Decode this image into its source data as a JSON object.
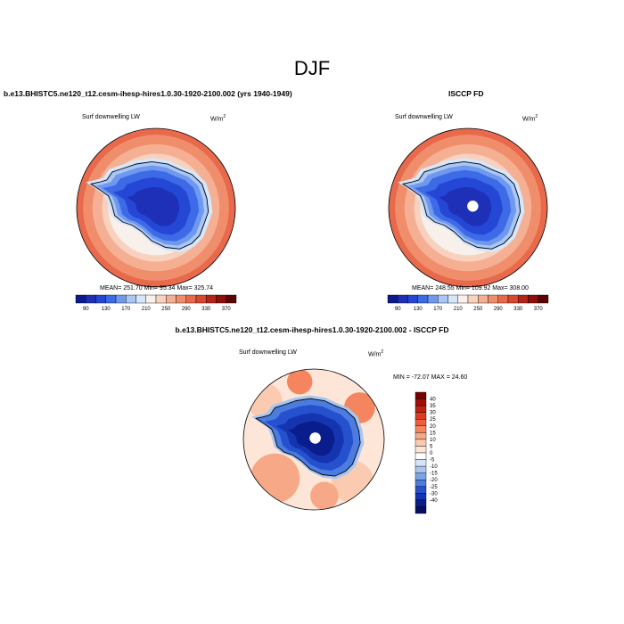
{
  "main_title": "DJF",
  "panels": [
    {
      "case_title": "b.e13.BHISTC5.ne120_t12.cesm-ihesp-hires1.0.30-1920-2100.002 (yrs 1940-1949)",
      "variable": "Surf downwelling LW",
      "units_base": "W/m",
      "units_exp": "2",
      "stats": "MEAN= 251.70  Min=  95.34  Max= 325.74"
    },
    {
      "case_title": "ISCCP FD",
      "variable": "Surf downwelling LW",
      "units_base": "W/m",
      "units_exp": "2",
      "stats": "MEAN= 248.55  Min= 109.92  Max= 308.00"
    },
    {
      "case_title": "b.e13.BHISTC5.ne120_t12.cesm-ihesp-hires1.0.30-1920-2100.002 - ISCCP FD",
      "variable": "Surf downwelling LW",
      "units_base": "W/m",
      "units_exp": "2",
      "stats": "MIN = -72.07 MAX =  24.60"
    }
  ],
  "colorbar_abs": {
    "labels": [
      "90",
      "130",
      "170",
      "210",
      "250",
      "290",
      "330",
      "370"
    ],
    "colors": [
      "#0b1a8c",
      "#1e2fb8",
      "#2547d6",
      "#3d6ae6",
      "#6f98ef",
      "#a8c6f6",
      "#d6e6fb",
      "#f8f0ea",
      "#f8d2bf",
      "#f5af92",
      "#f08e6c",
      "#e8694b",
      "#d9472e",
      "#b82317",
      "#8c0f0a",
      "#5a0503"
    ]
  },
  "colorbar_diff": {
    "labels": [
      "40",
      "35",
      "30",
      "25",
      "20",
      "15",
      "10",
      "5",
      "0",
      "-5",
      "-10",
      "-15",
      "-20",
      "-25",
      "-30",
      "-40"
    ],
    "colors": [
      "#7a0000",
      "#a00e08",
      "#c22212",
      "#dc3b22",
      "#ec5f3e",
      "#f4855f",
      "#f7a987",
      "#fbcbb1",
      "#fde6d8",
      "#ffffff",
      "#d7e5f8",
      "#a9c6f0",
      "#7aa3e8",
      "#4c7ce0",
      "#2551cf",
      "#1535b0",
      "#0a1d8c",
      "#050f66"
    ]
  },
  "chart_data": [
    {
      "type": "heatmap",
      "title": "b.e13.BHISTC5.ne120_t12.cesm-ihesp-hires1.0.30-1920-2100.002 (yrs 1940-1949)",
      "variable": "Surf downwelling LW",
      "units": "W/m2",
      "projection": "south polar stereographic",
      "mean": 251.7,
      "min": 95.34,
      "max": 325.74,
      "colorbar_levels": [
        90,
        130,
        170,
        210,
        250,
        290,
        330,
        370
      ]
    },
    {
      "type": "heatmap",
      "title": "ISCCP FD",
      "variable": "Surf downwelling LW",
      "units": "W/m2",
      "projection": "south polar stereographic",
      "mean": 248.55,
      "min": 109.92,
      "max": 308.0,
      "colorbar_levels": [
        90,
        130,
        170,
        210,
        250,
        290,
        330,
        370
      ]
    },
    {
      "type": "heatmap",
      "title": "b.e13.BHISTC5.ne120_t12.cesm-ihesp-hires1.0.30-1920-2100.002 - ISCCP FD",
      "variable": "Surf downwelling LW",
      "units": "W/m2",
      "projection": "south polar stereographic",
      "min": -72.07,
      "max": 24.6,
      "colorbar_levels": [
        40,
        35,
        30,
        25,
        20,
        15,
        10,
        5,
        0,
        -5,
        -10,
        -15,
        -20,
        -25,
        -30,
        -40
      ]
    }
  ]
}
